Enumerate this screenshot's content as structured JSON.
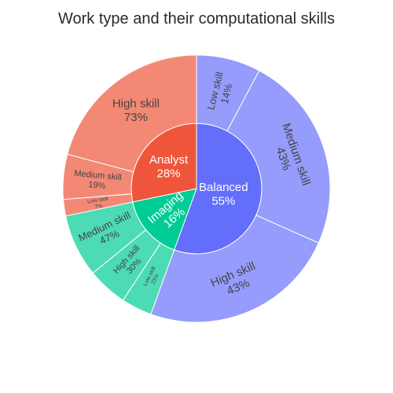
{
  "chart_data": {
    "type": "sunburst",
    "title": "Work type and their computational skills",
    "root_start_angle_deg": 270,
    "direction": "clockwise",
    "nodes": [
      {
        "name": "Balanced",
        "label": "Balanced",
        "percent_label": "55%",
        "value": 55,
        "color": "#636efa",
        "children": [
          {
            "name": "Low skill",
            "label": "Low skill",
            "percent_label": "14%",
            "value": 14,
            "color": "#959cfb"
          },
          {
            "name": "Medium skill",
            "label": "Medium skill",
            "percent_label": "43%",
            "value": 43,
            "color": "#959cfb"
          },
          {
            "name": "High skill",
            "label": "High skill",
            "percent_label": "43%",
            "value": 43,
            "color": "#959cfb"
          }
        ]
      },
      {
        "name": "Imaging",
        "label": "Imaging",
        "percent_label": "16%",
        "value": 16,
        "color": "#00cc96",
        "children": [
          {
            "name": "Low skill",
            "label": "Low skill",
            "percent_label": "23%",
            "value": 23,
            "color": "#4cdbb5"
          },
          {
            "name": "High skill",
            "label": "High skill",
            "percent_label": "30%",
            "value": 30,
            "color": "#4cdbb5"
          },
          {
            "name": "Medium skill",
            "label": "Medium skill",
            "percent_label": "47%",
            "value": 47,
            "color": "#4cdbb5"
          }
        ]
      },
      {
        "name": "Analyst",
        "label": "Analyst",
        "percent_label": "28%",
        "value": 28,
        "color": "#ef553b",
        "children": [
          {
            "name": "Low skill",
            "label": "Low skill",
            "percent_label": "7%",
            "value": 7,
            "color": "#f38875"
          },
          {
            "name": "Medium skill",
            "label": "Medium skill",
            "percent_label": "19%",
            "value": 19,
            "color": "#f38875"
          },
          {
            "name": "High skill",
            "label": "High skill",
            "percent_label": "73%",
            "value": 73,
            "color": "#f38875"
          }
        ]
      }
    ]
  }
}
